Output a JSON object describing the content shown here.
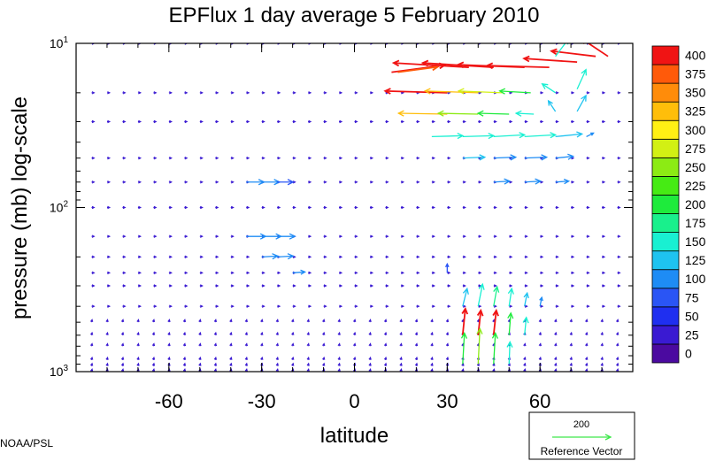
{
  "chart_data": {
    "type": "vector",
    "title": "EPFlux  1 day average  5 February 2010",
    "xlabel": "latitude",
    "ylabel": "pressure (mb)  log-scale",
    "xlim": [
      -90,
      90
    ],
    "ylim_mb": [
      1000,
      10
    ],
    "y_scale": "log",
    "x_ticks": [
      -60,
      -30,
      0,
      30,
      60
    ],
    "x_tick_labels": [
      "-60",
      "-30",
      "0",
      "30",
      "60"
    ],
    "y_ticks": [
      {
        "value": 10,
        "base": "10",
        "exp": "1"
      },
      {
        "value": 100,
        "base": "10",
        "exp": "2"
      },
      {
        "value": 1000,
        "base": "10",
        "exp": "3"
      }
    ],
    "colorbar": {
      "levels": [
        0,
        25,
        50,
        75,
        100,
        125,
        150,
        175,
        200,
        225,
        250,
        275,
        300,
        325,
        350,
        375,
        400
      ],
      "labels": [
        "0",
        "25",
        "50",
        "75",
        "100",
        "125",
        "150",
        "175",
        "200",
        "225",
        "250",
        "275",
        "300",
        "325",
        "350",
        "375",
        "400"
      ],
      "colors": [
        "#4b0aa0",
        "#3a1ad2",
        "#1f2ff0",
        "#2a55f5",
        "#1e8cf5",
        "#1ec3f0",
        "#19f0d2",
        "#19f08c",
        "#1eeb3c",
        "#46eb14",
        "#8ceb14",
        "#d2f014",
        "#fff014",
        "#ffbe0a",
        "#ff8c0a",
        "#ff5a0a",
        "#f01414"
      ]
    },
    "reference_vector": {
      "magnitude": 200,
      "value_label": "200",
      "label": "Reference Vector",
      "color": "#3de84a"
    },
    "levels_mb": [
      1000,
      925,
      850,
      700,
      600,
      500,
      400,
      300,
      250,
      200,
      150,
      100,
      70,
      50,
      30,
      20,
      10
    ],
    "lats": [
      -85,
      -80,
      -75,
      -70,
      -65,
      -60,
      -55,
      -50,
      -45,
      -40,
      -35,
      -30,
      -25,
      -20,
      -15,
      -10,
      -5,
      0,
      5,
      10,
      15,
      20,
      25,
      30,
      35,
      40,
      45,
      50,
      55,
      60,
      65,
      70,
      75,
      80,
      85
    ],
    "vectors": [
      {
        "lat": 12,
        "p": 15,
        "u": 60,
        "v": 8,
        "mag": 410
      },
      {
        "lat": 14,
        "p": 15,
        "u": 45,
        "v": 6,
        "mag": 380
      },
      {
        "lat": 37,
        "p": 14,
        "u": -85,
        "v": 5,
        "mag": 420
      },
      {
        "lat": 45,
        "p": 14,
        "u": -80,
        "v": 5,
        "mag": 420
      },
      {
        "lat": 55,
        "p": 14,
        "u": -75,
        "v": 3,
        "mag": 410
      },
      {
        "lat": 63,
        "p": 14,
        "u": -70,
        "v": 2,
        "mag": 400
      },
      {
        "lat": 72,
        "p": 13,
        "u": -60,
        "v": 4,
        "mag": 420
      },
      {
        "lat": 78,
        "p": 12,
        "u": -50,
        "v": 6,
        "mag": 400
      },
      {
        "lat": 82,
        "p": 12,
        "u": -30,
        "v": 20,
        "mag": 410
      },
      {
        "lat": 65,
        "p": 12,
        "u": 15,
        "v": 20,
        "mag": 170
      },
      {
        "lat": 30,
        "p": 20,
        "u": -70,
        "v": 2,
        "mag": 400
      },
      {
        "lat": 40,
        "p": 20,
        "u": -60,
        "v": 2,
        "mag": 330
      },
      {
        "lat": 48,
        "p": 20,
        "u": -50,
        "v": 2,
        "mag": 280
      },
      {
        "lat": 57,
        "p": 20,
        "u": -35,
        "v": 2,
        "mag": 200
      },
      {
        "lat": 65,
        "p": 20,
        "u": -15,
        "v": 10,
        "mag": 150
      },
      {
        "lat": 72,
        "p": 19,
        "u": 10,
        "v": 22,
        "mag": 150
      },
      {
        "lat": 30,
        "p": 27,
        "u": -55,
        "v": 1,
        "mag": 330
      },
      {
        "lat": 40,
        "p": 27,
        "u": -45,
        "v": 1,
        "mag": 250
      },
      {
        "lat": 50,
        "p": 27,
        "u": -35,
        "v": 1,
        "mag": 200
      },
      {
        "lat": 58,
        "p": 27,
        "u": -20,
        "v": 1,
        "mag": 150
      },
      {
        "lat": 65,
        "p": 26,
        "u": -8,
        "v": 12,
        "mag": 130
      },
      {
        "lat": 72,
        "p": 26,
        "u": 10,
        "v": 18,
        "mag": 130
      },
      {
        "lat": 75,
        "p": 37,
        "u": 8,
        "v": 4,
        "mag": 110
      },
      {
        "lat": 25,
        "p": 37,
        "u": 35,
        "v": 1,
        "mag": 170
      },
      {
        "lat": 35,
        "p": 37,
        "u": 35,
        "v": 1,
        "mag": 170
      },
      {
        "lat": 45,
        "p": 37,
        "u": 35,
        "v": 2,
        "mag": 160
      },
      {
        "lat": 55,
        "p": 37,
        "u": 35,
        "v": 2,
        "mag": 160
      },
      {
        "lat": 65,
        "p": 37,
        "u": 30,
        "v": 3,
        "mag": 140
      },
      {
        "lat": 35,
        "p": 50,
        "u": 25,
        "v": 1,
        "mag": 130
      },
      {
        "lat": 45,
        "p": 50,
        "u": 25,
        "v": 1,
        "mag": 120
      },
      {
        "lat": 55,
        "p": 50,
        "u": 25,
        "v": 1,
        "mag": 120
      },
      {
        "lat": 65,
        "p": 50,
        "u": 20,
        "v": 2,
        "mag": 110
      },
      {
        "lat": 45,
        "p": 70,
        "u": 18,
        "v": 1,
        "mag": 110
      },
      {
        "lat": 55,
        "p": 70,
        "u": 18,
        "v": 1,
        "mag": 110
      },
      {
        "lat": 65,
        "p": 70,
        "u": 15,
        "v": 1,
        "mag": 100
      },
      {
        "lat": -35,
        "p": 70,
        "u": 20,
        "v": 0,
        "mag": 100
      },
      {
        "lat": -30,
        "p": 70,
        "u": 20,
        "v": 0,
        "mag": 100
      },
      {
        "lat": -25,
        "p": 70,
        "u": 18,
        "v": 0,
        "mag": 90
      },
      {
        "lat": -35,
        "p": 150,
        "u": 22,
        "v": 0,
        "mag": 110
      },
      {
        "lat": -30,
        "p": 150,
        "u": 22,
        "v": 0,
        "mag": 110
      },
      {
        "lat": -25,
        "p": 150,
        "u": 20,
        "v": 0,
        "mag": 110
      },
      {
        "lat": -30,
        "p": 200,
        "u": 18,
        "v": 1,
        "mag": 120
      },
      {
        "lat": -25,
        "p": 200,
        "u": 18,
        "v": 1,
        "mag": 110
      },
      {
        "lat": -20,
        "p": 250,
        "u": 14,
        "v": 1,
        "mag": 100
      },
      {
        "lat": 30,
        "p": 250,
        "u": 0,
        "v": 10,
        "mag": 80
      },
      {
        "lat": 35,
        "p": 400,
        "u": 5,
        "v": 20,
        "mag": 130
      },
      {
        "lat": 40,
        "p": 400,
        "u": 5,
        "v": 25,
        "mag": 170
      },
      {
        "lat": 45,
        "p": 400,
        "u": 4,
        "v": 22,
        "mag": 190
      },
      {
        "lat": 50,
        "p": 400,
        "u": 3,
        "v": 20,
        "mag": 170
      },
      {
        "lat": 55,
        "p": 400,
        "u": 3,
        "v": 15,
        "mag": 140
      },
      {
        "lat": 60,
        "p": 400,
        "u": 2,
        "v": 10,
        "mag": 120
      },
      {
        "lat": 35,
        "p": 600,
        "u": 3,
        "v": 30,
        "mag": 400
      },
      {
        "lat": 40,
        "p": 600,
        "u": 3,
        "v": 28,
        "mag": 400
      },
      {
        "lat": 45,
        "p": 600,
        "u": 3,
        "v": 28,
        "mag": 400
      },
      {
        "lat": 50,
        "p": 600,
        "u": 2,
        "v": 25,
        "mag": 220
      },
      {
        "lat": 55,
        "p": 600,
        "u": 2,
        "v": 20,
        "mag": 170
      },
      {
        "lat": 35,
        "p": 900,
        "u": 2,
        "v": 35,
        "mag": 200
      },
      {
        "lat": 40,
        "p": 900,
        "u": 2,
        "v": 40,
        "mag": 250
      },
      {
        "lat": 45,
        "p": 900,
        "u": 2,
        "v": 35,
        "mag": 220
      },
      {
        "lat": 50,
        "p": 900,
        "u": 1,
        "v": 25,
        "mag": 170
      }
    ]
  },
  "credit": "NOAA/PSL"
}
